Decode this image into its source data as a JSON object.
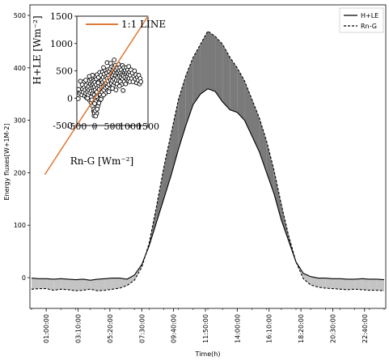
{
  "chart_data": [
    {
      "type": "line",
      "xlabel": "Time(h)",
      "ylabel": "Energy fluxes[W+1M-2]",
      "ylim": [
        -40,
        500
      ],
      "yticks": [
        0,
        100,
        200,
        300,
        400,
        500
      ],
      "x_range_hours": [
        0,
        24
      ],
      "xticks": [
        {
          "label": "01:00:00",
          "hour": 1.0
        },
        {
          "label": "03:10:00",
          "hour": 3.167
        },
        {
          "label": "05:20:00",
          "hour": 5.333
        },
        {
          "label": "07:30:00",
          "hour": 7.5
        },
        {
          "label": "09:40:00",
          "hour": 9.667
        },
        {
          "label": "11:50:00",
          "hour": 11.833
        },
        {
          "label": "14:00:00",
          "hour": 14.0
        },
        {
          "label": "16:10:00",
          "hour": 16.167
        },
        {
          "label": "18:20:00",
          "hour": 18.333
        },
        {
          "label": "20:30:00",
          "hour": 20.5
        },
        {
          "label": "22:40:00",
          "hour": 22.667
        }
      ],
      "legend": {
        "placement": "top-right",
        "entries": [
          "H+LE",
          "Rn-G"
        ]
      },
      "series": [
        {
          "name": "H+LE",
          "style": "solid",
          "x": [
            0,
            0.5,
            1,
            1.5,
            2,
            2.5,
            3,
            3.5,
            4,
            4.5,
            5,
            5.5,
            6,
            6.5,
            7,
            7.5,
            8,
            8.5,
            9,
            9.5,
            10,
            10.5,
            11,
            11.5,
            12,
            12.5,
            13,
            13.5,
            14,
            14.5,
            15,
            15.5,
            16,
            16.5,
            17,
            17.5,
            18,
            18.5,
            19,
            19.5,
            20,
            20.5,
            21,
            21.5,
            22,
            22.5,
            23,
            23.5,
            24
          ],
          "values": [
            -1,
            -2,
            -2,
            -3,
            -2,
            -3,
            -4,
            -3,
            -5,
            -3,
            -2,
            -1,
            -1,
            -3,
            5,
            25,
            60,
            105,
            150,
            195,
            245,
            290,
            330,
            350,
            360,
            355,
            335,
            320,
            315,
            300,
            270,
            240,
            200,
            160,
            110,
            70,
            30,
            8,
            2,
            -1,
            -1,
            -2,
            -2,
            -3,
            -3,
            -2,
            -3,
            -3,
            -4
          ]
        },
        {
          "name": "Rn-G",
          "style": "dashed",
          "x": [
            0,
            0.5,
            1,
            1.5,
            2,
            2.5,
            3,
            3.5,
            4,
            4.5,
            5,
            5.5,
            6,
            6.5,
            7,
            7.5,
            8,
            8.5,
            9,
            9.5,
            10,
            10.5,
            11,
            11.5,
            12,
            12.5,
            13,
            13.5,
            14,
            14.5,
            15,
            15.5,
            16,
            16.5,
            17,
            17.5,
            18,
            18.5,
            19,
            19.5,
            20,
            20.5,
            21,
            21.5,
            22,
            22.5,
            23,
            23.5,
            24
          ],
          "values": [
            -22,
            -21,
            -21,
            -24,
            -22,
            -23,
            -25,
            -24,
            -22,
            -25,
            -24,
            -22,
            -20,
            -15,
            -5,
            20,
            65,
            135,
            210,
            275,
            340,
            385,
            420,
            445,
            470,
            460,
            445,
            420,
            400,
            375,
            340,
            305,
            260,
            205,
            140,
            80,
            30,
            -2,
            -14,
            -18,
            -20,
            -21,
            -22,
            -23,
            -22,
            -23,
            -24,
            -24,
            -25
          ]
        }
      ]
    },
    {
      "type": "scatter",
      "inset": true,
      "xlabel": "Rn-G [Wm⁻²]",
      "ylabel": "H+LE [Wm⁻²]",
      "xlim": [
        -500,
        1500
      ],
      "ylim": [
        -500,
        1500
      ],
      "xticks": [
        "-500",
        "0",
        "500",
        "1000",
        "1500"
      ],
      "yticks": [
        "-500",
        "0",
        "500",
        "1000",
        "1500"
      ],
      "legend": {
        "placement": "top-left",
        "entries": [
          "1:1 LINE"
        ]
      },
      "line_1to1": {
        "name": "1:1 LINE",
        "color": "#e07b39"
      },
      "points": [
        [
          -420,
          90
        ],
        [
          -390,
          130
        ],
        [
          -360,
          60
        ],
        [
          -340,
          170
        ],
        [
          -320,
          110
        ],
        [
          -300,
          210
        ],
        [
          -280,
          40
        ],
        [
          -270,
          150
        ],
        [
          -250,
          90
        ],
        [
          -240,
          240
        ],
        [
          -230,
          10
        ],
        [
          -210,
          180
        ],
        [
          -200,
          120
        ],
        [
          -190,
          290
        ],
        [
          -180,
          60
        ],
        [
          -170,
          210
        ],
        [
          -160,
          150
        ],
        [
          -150,
          320
        ],
        [
          -140,
          -40
        ],
        [
          -130,
          100
        ],
        [
          -120,
          260
        ],
        [
          -110,
          180
        ],
        [
          -100,
          350
        ],
        [
          -95,
          20
        ],
        [
          -90,
          130
        ],
        [
          -80,
          230
        ],
        [
          -70,
          300
        ],
        [
          -60,
          -140
        ],
        [
          -55,
          80
        ],
        [
          -50,
          190
        ],
        [
          -40,
          380
        ],
        [
          -35,
          260
        ],
        [
          -30,
          -240
        ],
        [
          -25,
          140
        ],
        [
          -20,
          320
        ],
        [
          -15,
          -320
        ],
        [
          -10,
          60
        ],
        [
          -5,
          210
        ],
        [
          0,
          400
        ],
        [
          10,
          290
        ],
        [
          20,
          150
        ],
        [
          30,
          -60
        ],
        [
          40,
          240
        ],
        [
          50,
          350
        ],
        [
          60,
          110
        ],
        [
          70,
          430
        ],
        [
          80,
          190
        ],
        [
          90,
          290
        ],
        [
          100,
          -10
        ],
        [
          110,
          380
        ],
        [
          120,
          230
        ],
        [
          130,
          160
        ],
        [
          140,
          470
        ],
        [
          150,
          310
        ],
        [
          160,
          60
        ],
        [
          170,
          260
        ],
        [
          180,
          420
        ],
        [
          190,
          200
        ],
        [
          200,
          330
        ],
        [
          210,
          110
        ],
        [
          220,
          480
        ],
        [
          230,
          290
        ],
        [
          240,
          380
        ],
        [
          250,
          220
        ],
        [
          260,
          150
        ],
        [
          270,
          440
        ],
        [
          280,
          330
        ],
        [
          290,
          260
        ],
        [
          300,
          510
        ],
        [
          310,
          190
        ],
        [
          320,
          390
        ],
        [
          330,
          280
        ],
        [
          340,
          460
        ],
        [
          350,
          360
        ],
        [
          360,
          210
        ],
        [
          370,
          520
        ],
        [
          380,
          310
        ],
        [
          390,
          420
        ],
        [
          400,
          250
        ],
        [
          410,
          490
        ],
        [
          420,
          370
        ],
        [
          430,
          170
        ],
        [
          440,
          540
        ],
        [
          450,
          330
        ],
        [
          460,
          450
        ],
        [
          470,
          270
        ],
        [
          480,
          580
        ],
        [
          490,
          400
        ],
        [
          500,
          320
        ],
        [
          510,
          500
        ],
        [
          520,
          230
        ],
        [
          530,
          430
        ],
        [
          540,
          560
        ],
        [
          550,
          350
        ],
        [
          560,
          470
        ],
        [
          570,
          280
        ],
        [
          580,
          600
        ],
        [
          590,
          420
        ],
        [
          600,
          510
        ],
        [
          610,
          330
        ],
        [
          620,
          460
        ],
        [
          630,
          260
        ],
        [
          640,
          550
        ],
        [
          650,
          380
        ],
        [
          660,
          470
        ],
        [
          670,
          620
        ],
        [
          680,
          320
        ],
        [
          690,
          500
        ],
        [
          700,
          410
        ],
        [
          710,
          560
        ],
        [
          720,
          300
        ],
        [
          730,
          460
        ],
        [
          740,
          380
        ],
        [
          750,
          520
        ],
        [
          760,
          250
        ],
        [
          770,
          430
        ],
        [
          780,
          600
        ],
        [
          790,
          350
        ],
        [
          800,
          480
        ],
        [
          810,
          410
        ],
        [
          820,
          560
        ],
        [
          830,
          300
        ],
        [
          840,
          470
        ],
        [
          850,
          380
        ],
        [
          860,
          510
        ],
        [
          870,
          260
        ],
        [
          880,
          440
        ],
        [
          890,
          560
        ],
        [
          900,
          350
        ],
        [
          910,
          470
        ],
        [
          920,
          400
        ],
        [
          930,
          520
        ],
        [
          940,
          320
        ],
        [
          950,
          440
        ],
        [
          960,
          580
        ],
        [
          970,
          360
        ],
        [
          980,
          480
        ],
        [
          990,
          300
        ],
        [
          1000,
          420
        ],
        [
          1020,
          520
        ],
        [
          1040,
          360
        ],
        [
          1060,
          460
        ],
        [
          1080,
          300
        ],
        [
          1100,
          400
        ],
        [
          1120,
          500
        ],
        [
          1140,
          350
        ],
        [
          1160,
          430
        ],
        [
          1180,
          280
        ],
        [
          1200,
          380
        ],
        [
          1220,
          330
        ],
        [
          1240,
          420
        ],
        [
          1260,
          260
        ],
        [
          1280,
          360
        ],
        [
          1300,
          300
        ],
        [
          -300,
          300
        ],
        [
          -200,
          0
        ],
        [
          -100,
          -80
        ],
        [
          -60,
          420
        ],
        [
          0,
          -100
        ],
        [
          50,
          30
        ],
        [
          100,
          280
        ],
        [
          200,
          20
        ],
        [
          300,
          90
        ],
        [
          400,
          120
        ],
        [
          500,
          180
        ],
        [
          600,
          150
        ],
        [
          700,
          220
        ],
        [
          800,
          140
        ],
        [
          150,
          -40
        ],
        [
          250,
          60
        ],
        [
          -150,
          400
        ],
        [
          -250,
          330
        ],
        [
          -350,
          250
        ],
        [
          -450,
          160
        ],
        [
          -460,
          -10
        ],
        [
          -400,
          310
        ],
        [
          350,
          650
        ],
        [
          450,
          640
        ],
        [
          550,
          700
        ],
        [
          250,
          560
        ],
        [
          -20,
          -200
        ],
        [
          -10,
          -270
        ],
        [
          60,
          -280
        ],
        [
          -80,
          -30
        ],
        [
          30,
          -330
        ],
        [
          15,
          -230
        ],
        [
          90,
          -150
        ],
        [
          120,
          -90
        ],
        [
          180,
          -20
        ],
        [
          70,
          -200
        ]
      ]
    }
  ]
}
